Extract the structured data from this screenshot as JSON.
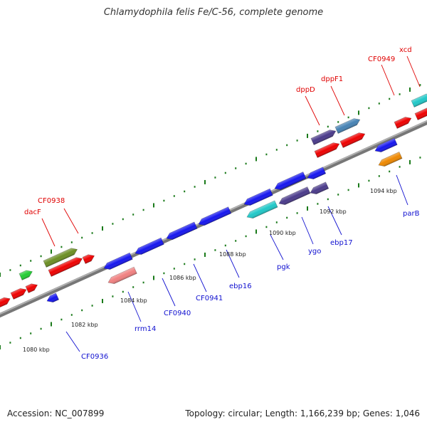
{
  "title": "Chlamydophila felis Fe/C-56, complete genome",
  "footer": {
    "accession": "Accession: NC_007899",
    "stats": "Topology: circular; Length: 1,166,239 bp; Genes: 1,046"
  },
  "colors": {
    "backbone": "#8a8a8a",
    "tick": "#1a7a1a",
    "forward_label": "#e00000",
    "reverse_label": "#1010d0"
  },
  "scale_labels": [
    "1080 kbp",
    "1082 kbp",
    "1084 kbp",
    "1086 kbp",
    "1088 kbp",
    "1090 kbp",
    "1092 kbp",
    "1094 kbp"
  ],
  "gene_labels_forward": [
    "dacF",
    "CF0938",
    "dppD",
    "dppF1",
    "CF0949",
    "xcd"
  ],
  "gene_labels_reverse": [
    "CF0936",
    "rrm14",
    "CF0940",
    "CF0941",
    "ebp16",
    "pgk",
    "ygo",
    "ebp17",
    "parB"
  ]
}
